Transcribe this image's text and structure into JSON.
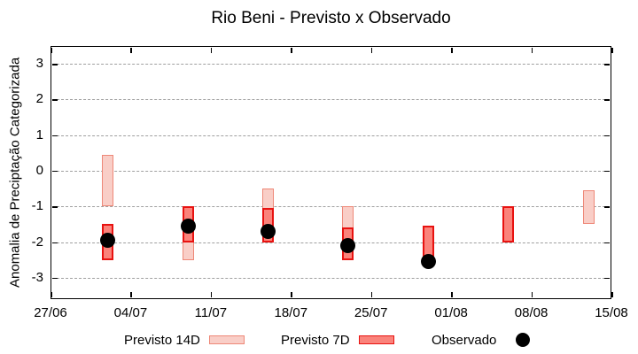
{
  "title": "Rio Beni - Previsto x Observado",
  "chart_data": {
    "type": "bar",
    "title": "Rio Beni - Previsto x Observado",
    "xlabel": "",
    "ylabel": "Anomalia de Preciptação Categorizada",
    "ylim": [
      -3.6,
      3.5
    ],
    "y_ticks": [
      3,
      2,
      1,
      0,
      -1,
      -2,
      -3
    ],
    "x_tick_labels": [
      "27/06",
      "04/07",
      "11/07",
      "18/07",
      "25/07",
      "01/08",
      "08/08",
      "15/08"
    ],
    "x_tick_days": [
      0,
      7,
      14,
      21,
      28,
      35,
      42,
      49
    ],
    "x_total_days": 49,
    "grid": true,
    "legend_position": "bottom",
    "series": [
      {
        "name": "Previsto 14D",
        "type": "range-bar",
        "fill": "#f9cec7",
        "border": "#ee8878",
        "ranges": [
          {
            "date": "02/07",
            "day": 5,
            "lo": -1.0,
            "hi": 0.45
          },
          {
            "date": "09/07",
            "day": 12,
            "lo": -2.5,
            "hi": -1.0
          },
          {
            "date": "16/07",
            "day": 19,
            "lo": -2.0,
            "hi": -0.5
          },
          {
            "date": "23/07",
            "day": 26,
            "lo": -2.5,
            "hi": -1.0
          },
          {
            "date": "13/08",
            "day": 47,
            "lo": -1.5,
            "hi": -0.55
          }
        ]
      },
      {
        "name": "Previsto 7D",
        "type": "range-bar",
        "fill": "#fa837b",
        "border": "#e81210",
        "ranges": [
          {
            "date": "02/07",
            "day": 5,
            "lo": -2.5,
            "hi": -1.5
          },
          {
            "date": "09/07",
            "day": 12,
            "lo": -2.0,
            "hi": -1.0
          },
          {
            "date": "16/07",
            "day": 19,
            "lo": -2.0,
            "hi": -1.05
          },
          {
            "date": "23/07",
            "day": 26,
            "lo": -2.5,
            "hi": -1.6
          },
          {
            "date": "30/07",
            "day": 33,
            "lo": -2.5,
            "hi": -1.55
          },
          {
            "date": "06/08",
            "day": 40,
            "lo": -2.0,
            "hi": -1.0
          }
        ]
      },
      {
        "name": "Observado",
        "type": "scatter",
        "color": "#000000",
        "points": [
          {
            "date": "02/07",
            "day": 5,
            "y": -1.95
          },
          {
            "date": "09/07",
            "day": 12,
            "y": -1.55
          },
          {
            "date": "16/07",
            "day": 19,
            "y": -1.7
          },
          {
            "date": "23/07",
            "day": 26,
            "y": -2.1
          },
          {
            "date": "30/07",
            "day": 33,
            "y": -2.55
          }
        ]
      }
    ]
  },
  "colors": {
    "background": "#ffffff",
    "axis": "#000000",
    "grid": "#a0a0a0"
  }
}
